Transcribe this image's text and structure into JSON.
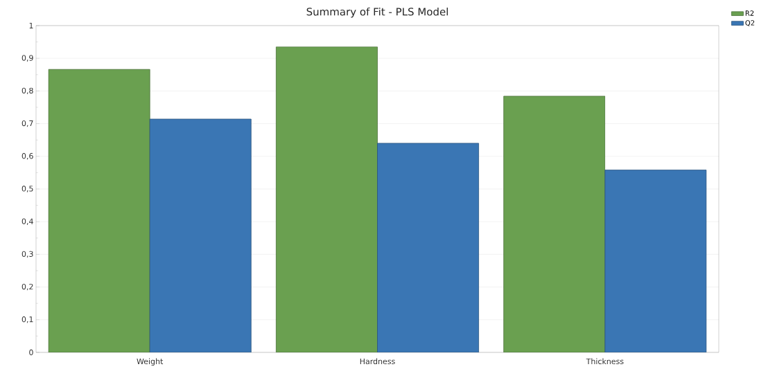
{
  "chart_data": {
    "type": "bar",
    "title": "Summary of Fit - PLS Model",
    "categories": [
      "Weight",
      "Hardness",
      "Thickness"
    ],
    "series": [
      {
        "name": "R2",
        "color": "#6aa050",
        "values": [
          0.866,
          0.935,
          0.784
        ]
      },
      {
        "name": "Q2",
        "color": "#3a76b4",
        "values": [
          0.714,
          0.64,
          0.558
        ]
      }
    ],
    "ylim": [
      0,
      1
    ],
    "yticks": [
      0,
      {
        "value": 0.1,
        "label": "0,1"
      },
      {
        "value": 0.2,
        "label": "0,2"
      },
      {
        "value": 0.3,
        "label": "0,3"
      },
      {
        "value": 0.4,
        "label": "0,4"
      },
      {
        "value": 0.5,
        "label": "0,5"
      },
      {
        "value": 0.6,
        "label": "0,6"
      },
      {
        "value": 0.7,
        "label": "0,7"
      },
      {
        "value": 0.8,
        "label": "0,8"
      },
      {
        "value": 0.9,
        "label": "0,9"
      },
      1
    ],
    "grid": "y",
    "legend": "top right"
  }
}
